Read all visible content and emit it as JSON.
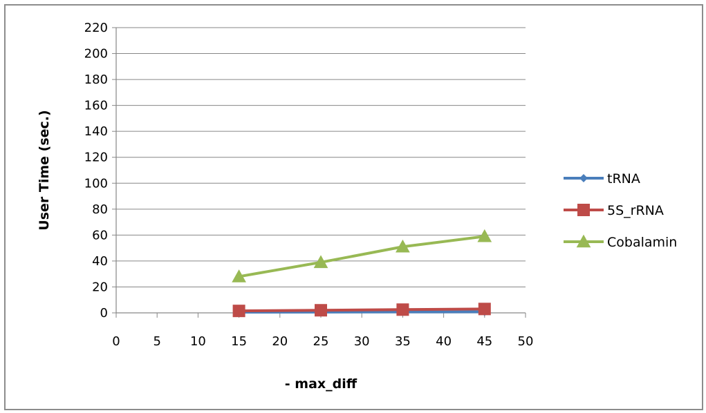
{
  "chart_data": {
    "type": "line",
    "title": "",
    "xlabel": "- max_diff",
    "ylabel": "User Time (sec.)",
    "xlim": [
      0,
      50
    ],
    "ylim": [
      0,
      220
    ],
    "xticks": [
      0,
      5,
      10,
      15,
      20,
      25,
      30,
      35,
      40,
      45,
      50
    ],
    "yticks": [
      0,
      20,
      40,
      60,
      80,
      100,
      120,
      140,
      160,
      180,
      200,
      220
    ],
    "grid": "horizontal",
    "legend_position": "right",
    "x": [
      15,
      25,
      35,
      45
    ],
    "series": [
      {
        "name": "tRNA",
        "values": [
          0.5,
          0.6,
          0.7,
          0.8
        ],
        "color": "#4a7ebb",
        "marker": "diamond"
      },
      {
        "name": "5S_rRNA",
        "values": [
          1.5,
          2,
          2.5,
          3
        ],
        "color": "#be4b48",
        "marker": "square"
      },
      {
        "name": "Cobalamin",
        "values": [
          28,
          39,
          51,
          59
        ],
        "color": "#98b954",
        "marker": "triangle"
      }
    ]
  }
}
